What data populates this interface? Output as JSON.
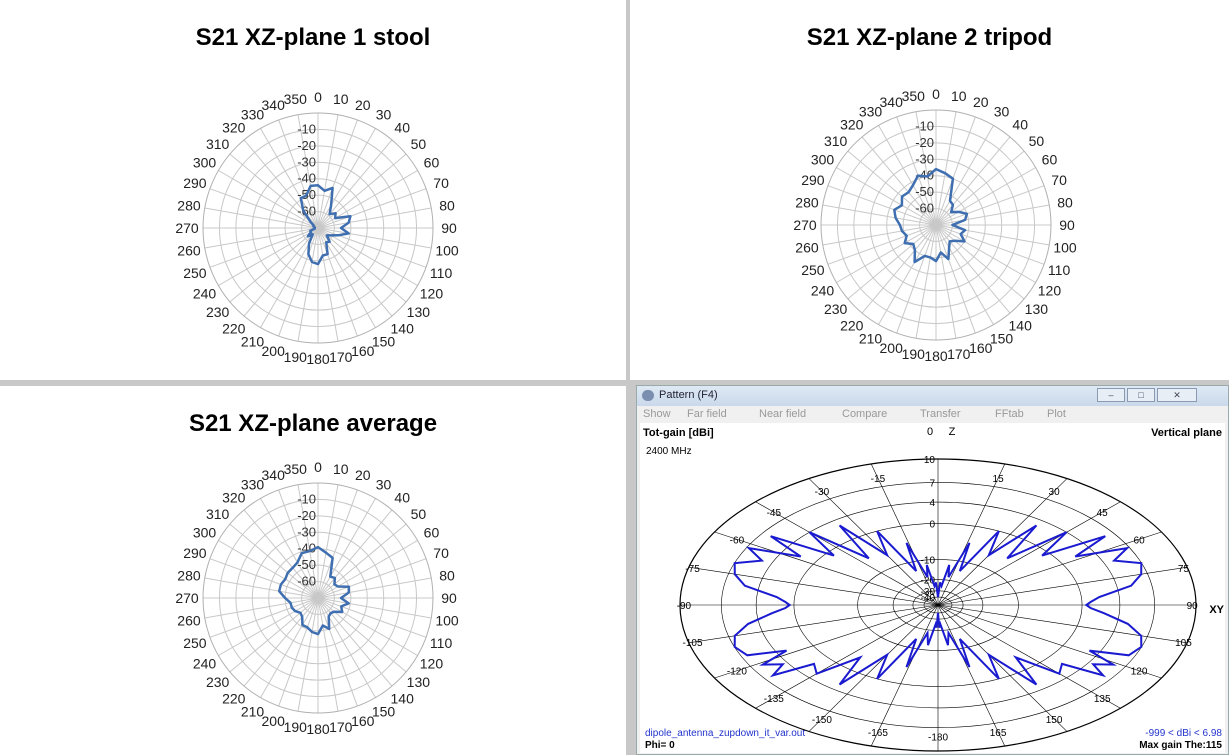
{
  "panels": [
    {
      "title": "S21 XZ-plane 1 stool",
      "angle_labels": [
        "0",
        "10",
        "20",
        "30",
        "40",
        "50",
        "60",
        "70",
        "80",
        "90",
        "100",
        "110",
        "120",
        "130",
        "140",
        "150",
        "160",
        "170",
        "180",
        "190",
        "200",
        "210",
        "220",
        "230",
        "240",
        "250",
        "260",
        "270",
        "280",
        "290",
        "300",
        "310",
        "320",
        "330",
        "340",
        "350"
      ],
      "radial_labels": [
        "-10",
        "-20",
        "-30",
        "-40",
        "-50",
        "-60"
      ]
    },
    {
      "title": "S21 XZ-plane 2 tripod",
      "angle_labels": [
        "0",
        "10",
        "20",
        "30",
        "40",
        "50",
        "60",
        "70",
        "80",
        "90",
        "100",
        "110",
        "120",
        "130",
        "140",
        "150",
        "160",
        "170",
        "180",
        "190",
        "200",
        "210",
        "220",
        "230",
        "240",
        "250",
        "260",
        "270",
        "280",
        "290",
        "300",
        "310",
        "320",
        "330",
        "340",
        "350"
      ],
      "radial_labels": [
        "-10",
        "-20",
        "-30",
        "-40",
        "-50",
        "-60"
      ]
    },
    {
      "title": "S21 XZ-plane average",
      "angle_labels": [
        "0",
        "10",
        "20",
        "30",
        "40",
        "50",
        "60",
        "70",
        "80",
        "90",
        "100",
        "110",
        "120",
        "130",
        "140",
        "150",
        "160",
        "170",
        "180",
        "190",
        "200",
        "210",
        "220",
        "230",
        "240",
        "250",
        "260",
        "270",
        "280",
        "290",
        "300",
        "310",
        "320",
        "330",
        "340",
        "350"
      ],
      "radial_labels": [
        "-10",
        "-20",
        "-30",
        "-40",
        "-50",
        "-60"
      ]
    }
  ],
  "pattern_window": {
    "title": "Pattern   (F4)",
    "window_buttons": [
      "–",
      "□",
      "✕"
    ],
    "menu": [
      "Show",
      "Far field",
      "Near field",
      "Compare",
      "Transfer",
      "FFtab",
      "Plot"
    ],
    "gain_label": "Tot-gain [dBi]",
    "freq_label": "2400 MHz",
    "plane_label": "Vertical plane",
    "axis_z": "Z",
    "axis_xy": "XY",
    "angle_labels": {
      "0": "0",
      "15": "15",
      "30": "30",
      "45": "45",
      "60": "60",
      "75": "75",
      "90": "90",
      "105": "105",
      "120": "120",
      "135": "135",
      "150": "150",
      "165": "165",
      "180": "-180",
      "-15": "-15",
      "-30": "-30",
      "-45": "-45",
      "-60": "-60",
      "-75": "-75",
      "-90": "-90",
      "-105": "-105",
      "-120": "-120",
      "-135": "-135",
      "-150": "-150",
      "-165": "-165"
    },
    "db_labels": [
      "10",
      "7",
      "4",
      "0",
      "-10",
      "-20",
      "-30",
      "-40"
    ],
    "file_label": "dipole_antenna_zupdown_it_var.out",
    "range_label": "-999 < dBi < 6.98",
    "phi_label": "Phi= 0",
    "maxgain_label": "Max gain The:115"
  },
  "chart_data": [
    {
      "type": "polar",
      "title": "S21 XZ-plane 1 stool",
      "angle_unit": "deg",
      "r_ticks": [
        0,
        -10,
        -20,
        -30,
        -40,
        -50,
        -60
      ],
      "r_range": [
        -70,
        0
      ],
      "grid": true,
      "series": [
        {
          "color": "#3f6fb0",
          "theta": [
            0,
            10,
            20,
            30,
            40,
            50,
            60,
            70,
            80,
            90,
            100,
            110,
            120,
            130,
            140,
            150,
            160,
            170,
            180,
            190,
            200,
            210,
            220,
            230,
            240,
            250,
            260,
            270,
            280,
            290,
            300,
            310,
            320,
            330,
            340,
            350
          ],
          "r": [
            -44,
            -47,
            -44,
            -54,
            -59,
            -56,
            -58,
            -49,
            -51,
            -56,
            -51,
            -57,
            -61,
            -63,
            -59,
            -60,
            -53,
            -53,
            -48,
            -49,
            -53,
            -59,
            -65,
            -62,
            -65,
            -65,
            -68,
            -68,
            -68,
            -67,
            -67,
            -64,
            -56,
            -49,
            -49,
            -44
          ]
        }
      ]
    },
    {
      "type": "polar",
      "title": "S21 XZ-plane 2 tripod",
      "angle_unit": "deg",
      "r_ticks": [
        0,
        -10,
        -20,
        -30,
        -40,
        -50,
        -60
      ],
      "r_range": [
        -70,
        0
      ],
      "grid": true,
      "series": [
        {
          "color": "#3f6fb0",
          "theta": [
            0,
            10,
            20,
            30,
            40,
            50,
            60,
            70,
            80,
            90,
            100,
            110,
            120,
            130,
            140,
            150,
            160,
            170,
            180,
            190,
            200,
            210,
            220,
            230,
            240,
            250,
            260,
            270,
            280,
            290,
            300,
            310,
            320,
            330,
            340,
            350
          ],
          "r": [
            -36,
            -38,
            -40,
            -53,
            -54,
            -58,
            -54,
            -50,
            -52,
            -60,
            -52,
            -54,
            -50,
            -55,
            -57,
            -54,
            -48,
            -53,
            -48,
            -50,
            -50,
            -44,
            -50,
            -52,
            -48,
            -51,
            -49,
            -48,
            -45,
            -43,
            -46,
            -43,
            -44,
            -42,
            -38,
            -40
          ]
        }
      ]
    },
    {
      "type": "polar",
      "title": "S21 XZ-plane average",
      "angle_unit": "deg",
      "r_ticks": [
        0,
        -10,
        -20,
        -30,
        -40,
        -50,
        -60
      ],
      "r_range": [
        -70,
        0
      ],
      "grid": true,
      "series": [
        {
          "color": "#3f6fb0",
          "theta": [
            0,
            10,
            20,
            30,
            40,
            50,
            60,
            70,
            80,
            90,
            100,
            110,
            120,
            130,
            140,
            150,
            160,
            170,
            180,
            190,
            200,
            210,
            220,
            230,
            240,
            250,
            260,
            270,
            280,
            290,
            300,
            310,
            320,
            330,
            340,
            350
          ],
          "r": [
            -39,
            -42,
            -44,
            -55,
            -54,
            -57,
            -56,
            -50,
            -51,
            -56,
            -51,
            -55,
            -53,
            -57,
            -58,
            -57,
            -50,
            -53,
            -48,
            -49,
            -51,
            -51,
            -55,
            -56,
            -54,
            -53,
            -53,
            -50,
            -46,
            -46,
            -47,
            -46,
            -46,
            -45,
            -41,
            -41
          ]
        }
      ]
    },
    {
      "type": "polar",
      "title": "Tot-gain [dBi]",
      "subtitle": "2400 MHz",
      "angle_unit": "deg",
      "r_ticks": [
        10,
        7,
        4,
        0,
        -10,
        -20,
        -30,
        -40
      ],
      "r_range": [
        -40,
        10
      ],
      "grid": true,
      "series": [
        {
          "color": "#1a1ad0",
          "theta": [
            0,
            3,
            6,
            9,
            12,
            16,
            20,
            25,
            30,
            35,
            40,
            45,
            50,
            54,
            58,
            62,
            66,
            70,
            75,
            80,
            85,
            88,
            90,
            92,
            95,
            100,
            105,
            110,
            115,
            118,
            121,
            124,
            127,
            130,
            135,
            140,
            145,
            150,
            155,
            160,
            164,
            168,
            172,
            176,
            178,
            180
          ],
          "r": [
            -40,
            -22,
            -25,
            -12,
            -18,
            -4,
            -14,
            0,
            -6,
            3,
            -5,
            4,
            -1,
            6.2,
            2,
            6.8,
            5,
            6.98,
            6.5,
            5.3,
            2,
            1,
            0.5,
            1,
            2.5,
            5,
            6.5,
            6.98,
            6.5,
            3,
            6,
            4.5,
            6.2,
            2,
            3,
            -3,
            3,
            -6,
            0,
            -14,
            -4,
            -18,
            -12,
            -25,
            -22,
            -40
          ]
        }
      ]
    }
  ]
}
